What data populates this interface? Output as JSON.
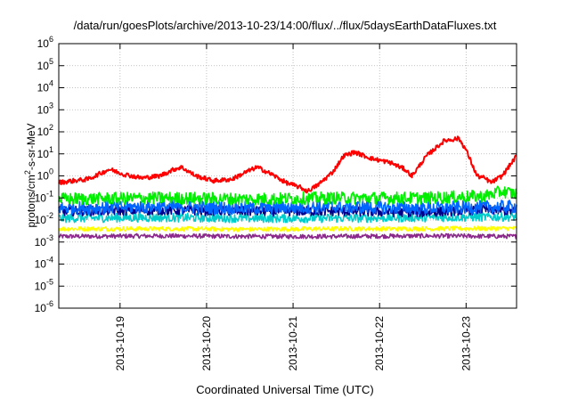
{
  "chart_data": {
    "type": "line",
    "title": "/data/run/goesPlots/archive/2013-10-23/14:00/flux/../flux/5daysEarthDataFluxes.txt",
    "xlabel": "Coordinated Universal Time (UTC)",
    "ylabel_prefix": "protons/cm",
    "ylabel_exp": "2",
    "ylabel_suffix": "-s-sr-MeV",
    "yscale": "log",
    "ylim": [
      "1e-6",
      "1e6"
    ],
    "xlim": [
      "2013-10-18T07:00",
      "2013-10-23T14:00"
    ],
    "grid": true,
    "legend": "none",
    "x_ticks": [
      "2013-10-19",
      "2013-10-20",
      "2013-10-21",
      "2013-10-22",
      "2013-10-23"
    ],
    "y_ticks": [
      {
        "base": "10",
        "exp": "-6"
      },
      {
        "base": "10",
        "exp": "-5"
      },
      {
        "base": "10",
        "exp": "-4"
      },
      {
        "base": "10",
        "exp": "-3"
      },
      {
        "base": "10",
        "exp": "-2"
      },
      {
        "base": "10",
        "exp": "-1"
      },
      {
        "base": "10",
        "exp": "0"
      },
      {
        "base": "10",
        "exp": "1"
      },
      {
        "base": "10",
        "exp": "2"
      },
      {
        "base": "10",
        "exp": "3"
      },
      {
        "base": "10",
        "exp": "4"
      },
      {
        "base": "10",
        "exp": "5"
      },
      {
        "base": "10",
        "exp": "6"
      }
    ],
    "series": [
      {
        "color": "#ff0000",
        "points": [
          [
            "2013-10-18T07:00",
            0.5
          ],
          [
            "2013-10-18T11:00",
            0.6
          ],
          [
            "2013-10-18T15:00",
            0.7
          ],
          [
            "2013-10-18T19:00",
            1.4
          ],
          [
            "2013-10-18T21:00",
            2.0
          ],
          [
            "2013-10-19T01:00",
            1.2
          ],
          [
            "2013-10-19T06:00",
            0.8
          ],
          [
            "2013-10-19T11:00",
            1.0
          ],
          [
            "2013-10-19T15:00",
            2.0
          ],
          [
            "2013-10-19T17:00",
            2.5
          ],
          [
            "2013-10-19T21:00",
            1.0
          ],
          [
            "2013-10-20T02:00",
            0.6
          ],
          [
            "2013-10-20T07:00",
            0.7
          ],
          [
            "2013-10-20T11:00",
            1.5
          ],
          [
            "2013-10-20T14:00",
            2.5
          ],
          [
            "2013-10-20T18:00",
            1.2
          ],
          [
            "2013-10-20T22:00",
            0.5
          ],
          [
            "2013-10-21T02:00",
            0.3
          ],
          [
            "2013-10-21T04:00",
            0.2
          ],
          [
            "2013-10-21T07:00",
            0.4
          ],
          [
            "2013-10-21T11:00",
            1.5
          ],
          [
            "2013-10-21T14:00",
            8.0
          ],
          [
            "2013-10-21T17:00",
            12.0
          ],
          [
            "2013-10-21T22:00",
            6.0
          ],
          [
            "2013-10-22T03:00",
            4.0
          ],
          [
            "2013-10-22T07:00",
            2.0
          ],
          [
            "2013-10-22T09:00",
            1.0
          ],
          [
            "2013-10-22T13:00",
            8.0
          ],
          [
            "2013-10-22T18:00",
            40.0
          ],
          [
            "2013-10-22T22:00",
            50.0
          ],
          [
            "2013-10-23T00:00",
            15.0
          ],
          [
            "2013-10-23T03:00",
            1.0
          ],
          [
            "2013-10-23T05:00",
            0.8
          ],
          [
            "2013-10-23T07:00",
            0.5
          ],
          [
            "2013-10-23T10:00",
            1.0
          ],
          [
            "2013-10-23T14:00",
            8.0
          ]
        ]
      },
      {
        "color": "#00ee00",
        "points": [
          [
            "2013-10-18T07:00",
            0.09
          ],
          [
            "2013-10-19T12:00",
            0.1
          ],
          [
            "2013-10-20T12:00",
            0.09
          ],
          [
            "2013-10-21T12:00",
            0.1
          ],
          [
            "2013-10-22T12:00",
            0.1
          ],
          [
            "2013-10-23T05:00",
            0.12
          ],
          [
            "2013-10-23T10:00",
            0.2
          ],
          [
            "2013-10-23T14:00",
            0.15
          ]
        ]
      },
      {
        "color": "#0066ff",
        "points": [
          [
            "2013-10-18T07:00",
            0.035
          ],
          [
            "2013-10-19T12:00",
            0.04
          ],
          [
            "2013-10-20T12:00",
            0.035
          ],
          [
            "2013-10-21T12:00",
            0.04
          ],
          [
            "2013-10-22T12:00",
            0.035
          ],
          [
            "2013-10-23T14:00",
            0.04
          ]
        ]
      },
      {
        "color": "#00008b",
        "points": [
          [
            "2013-10-18T07:00",
            0.025
          ],
          [
            "2013-10-19T12:00",
            0.028
          ],
          [
            "2013-10-20T12:00",
            0.025
          ],
          [
            "2013-10-21T12:00",
            0.025
          ],
          [
            "2013-10-22T12:00",
            0.022
          ],
          [
            "2013-10-23T05:00",
            0.03
          ],
          [
            "2013-10-23T14:00",
            0.025
          ]
        ]
      },
      {
        "color": "#00cccc",
        "points": [
          [
            "2013-10-18T07:00",
            0.012
          ],
          [
            "2013-10-19T12:00",
            0.013
          ],
          [
            "2013-10-20T12:00",
            0.012
          ],
          [
            "2013-10-21T12:00",
            0.012
          ],
          [
            "2013-10-22T12:00",
            0.013
          ],
          [
            "2013-10-23T14:00",
            0.014
          ]
        ]
      },
      {
        "color": "#ffff00",
        "points": [
          [
            "2013-10-18T07:00",
            0.004
          ],
          [
            "2013-10-19T12:00",
            0.004
          ],
          [
            "2013-10-20T12:00",
            0.0038
          ],
          [
            "2013-10-21T12:00",
            0.004
          ],
          [
            "2013-10-22T12:00",
            0.004
          ],
          [
            "2013-10-23T14:00",
            0.0042
          ]
        ]
      },
      {
        "color": "#8b2a8b",
        "points": [
          [
            "2013-10-18T07:00",
            0.0018
          ],
          [
            "2013-10-19T12:00",
            0.0019
          ],
          [
            "2013-10-20T12:00",
            0.0018
          ],
          [
            "2013-10-21T12:00",
            0.0018
          ],
          [
            "2013-10-22T12:00",
            0.0019
          ],
          [
            "2013-10-23T14:00",
            0.0018
          ]
        ]
      }
    ]
  }
}
